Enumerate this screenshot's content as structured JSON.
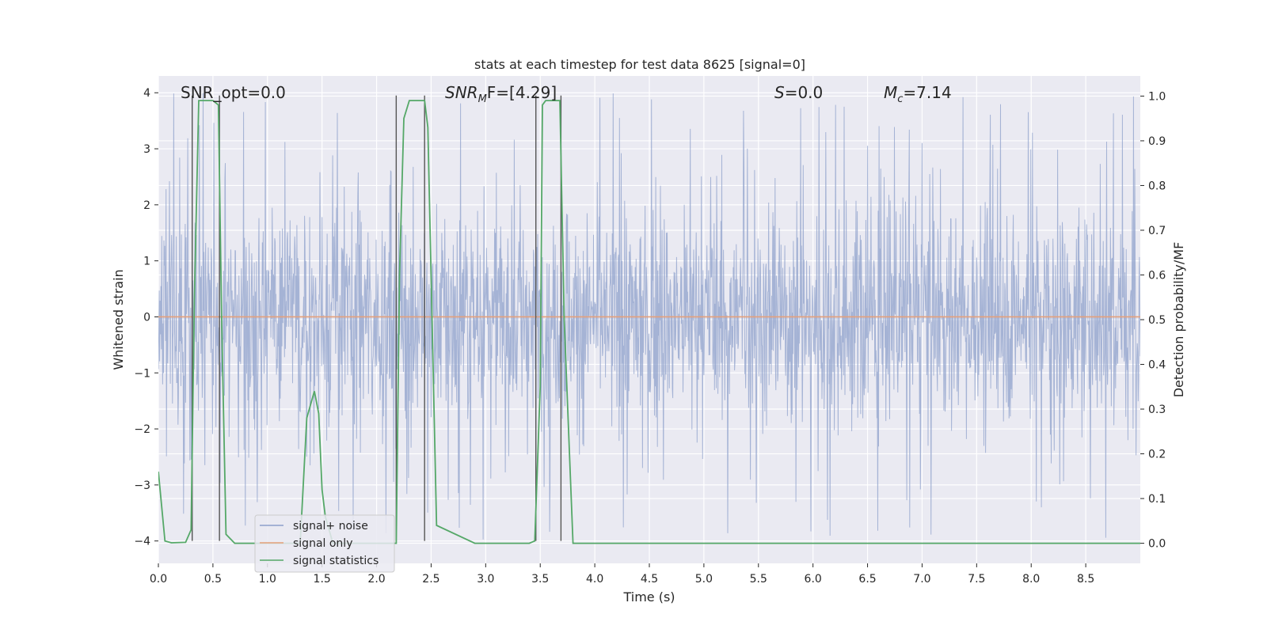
{
  "chart_data": {
    "type": "line",
    "title": "stats at each timestep for test data 8625 [signal=0]",
    "xlabel": "Time (s)",
    "ylabel": "Whitened strain",
    "y2label": "Detection probability/MF",
    "xlim": [
      0,
      9
    ],
    "ylim": [
      -4.4,
      4.3
    ],
    "y2lim": [
      -0.045,
      1.045
    ],
    "xticks": [
      "0.0",
      "0.5",
      "1.0",
      "1.5",
      "2.0",
      "2.5",
      "3.0",
      "3.5",
      "4.0",
      "4.5",
      "5.0",
      "5.5",
      "6.0",
      "6.5",
      "7.0",
      "7.5",
      "8.0",
      "8.5"
    ],
    "xtick_values": [
      0,
      0.5,
      1,
      1.5,
      2,
      2.5,
      3,
      3.5,
      4,
      4.5,
      5,
      5.5,
      6,
      6.5,
      7,
      7.5,
      8,
      8.5
    ],
    "yticks": [
      "4",
      "3",
      "2",
      "1",
      "0",
      "−1",
      "−2",
      "−3",
      "−4"
    ],
    "ytick_values": [
      4,
      3,
      2,
      1,
      0,
      -1,
      -2,
      -3,
      -4
    ],
    "y2ticks": [
      "1.0",
      "0.9",
      "0.8",
      "0.7",
      "0.6",
      "0.5",
      "0.4",
      "0.3",
      "0.2",
      "0.1",
      "0.0"
    ],
    "y2tick_values": [
      1.0,
      0.9,
      0.8,
      0.7,
      0.6,
      0.5,
      0.4,
      0.3,
      0.2,
      0.1,
      0.0
    ],
    "grid": true,
    "legend_position": "lower-left",
    "annotations": {
      "snr_opt": "SNR_opt=0.0",
      "snr_mf_prefix": "SNR",
      "snr_mf_sub": "M",
      "snr_mf_suffix": "F=[4.29]",
      "s_prefix": "S",
      "s_suffix": "=0.0",
      "mc_prefix": "M",
      "mc_sub": "c",
      "mc_suffix": "=7.14"
    },
    "series": [
      {
        "name": "signal+ noise",
        "color": "#8da0cb",
        "kind": "noise",
        "sample_rate": 256,
        "spread_range": [
          -2.4,
          2.4
        ],
        "peak_range": [
          -4.0,
          4.0
        ]
      },
      {
        "name": "signal only",
        "color": "#e5a07a",
        "kind": "constant",
        "value": 0
      },
      {
        "name": "signal statistics",
        "color": "#55a868",
        "axis": "right",
        "x": [
          0.0,
          0.06,
          0.12,
          0.25,
          0.3,
          0.33,
          0.37,
          0.4,
          0.45,
          0.5,
          0.55,
          0.58,
          0.62,
          0.7,
          1.0,
          1.3,
          1.36,
          1.43,
          1.47,
          1.5,
          1.53,
          1.6,
          2.0,
          2.18,
          2.21,
          2.25,
          2.3,
          2.35,
          2.44,
          2.47,
          2.55,
          2.9,
          3.4,
          3.45,
          3.5,
          3.52,
          3.55,
          3.6,
          3.68,
          3.72,
          3.8,
          4.2,
          9.0
        ],
        "y": [
          0.16,
          0.005,
          0.001,
          0.002,
          0.03,
          0.55,
          0.99,
          0.99,
          0.99,
          0.99,
          0.98,
          0.5,
          0.02,
          0.0,
          0.0,
          0.0,
          0.28,
          0.34,
          0.29,
          0.12,
          0.06,
          0.0,
          0.0,
          0.0,
          0.6,
          0.95,
          0.99,
          0.99,
          0.99,
          0.93,
          0.04,
          0.0,
          0.0,
          0.005,
          0.35,
          0.98,
          0.99,
          0.99,
          0.99,
          0.5,
          0.0,
          0.0,
          0.0
        ]
      }
    ],
    "vlines": {
      "color": "#555555",
      "x": [
        0.31,
        0.56,
        2.18,
        2.44,
        3.46,
        3.69
      ],
      "top": 3.95,
      "bottom": -4.0
    }
  }
}
